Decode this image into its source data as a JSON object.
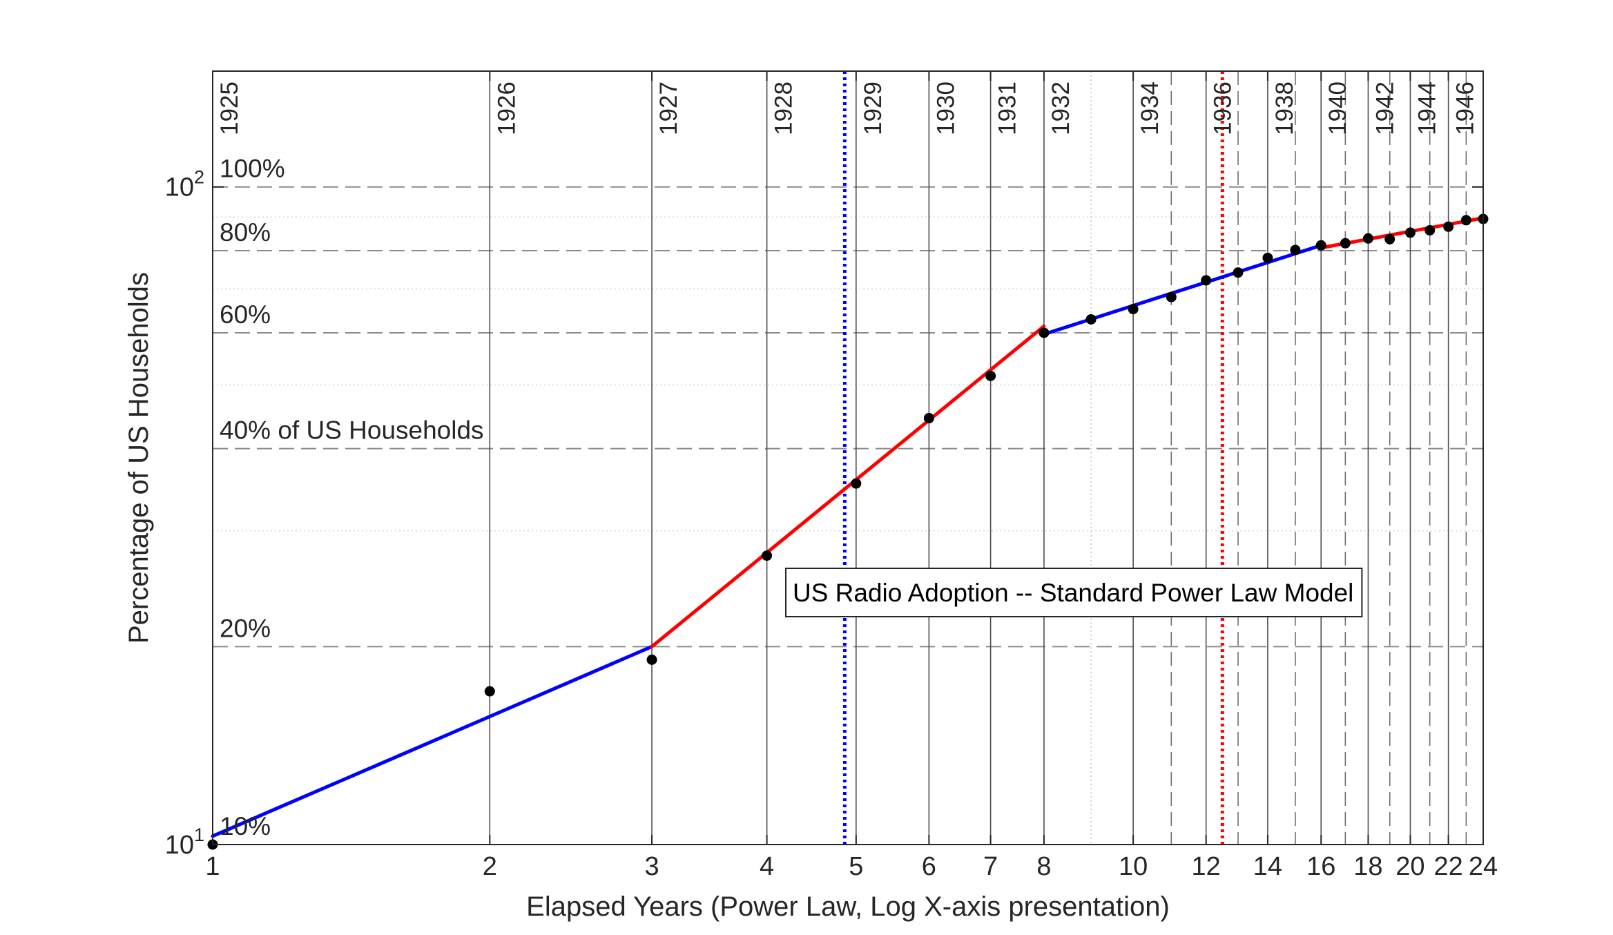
{
  "chart_data": {
    "type": "line",
    "xlabel": "Elapsed Years (Power Law, Log X-axis presentation)",
    "ylabel": "Percentage of US Households",
    "x_scale": "log",
    "y_scale": "log",
    "xlim": [
      1,
      24
    ],
    "ylim": [
      10,
      150
    ],
    "x_ticks": [
      1,
      2,
      3,
      4,
      5,
      6,
      7,
      8,
      10,
      12,
      14,
      16,
      18,
      20,
      22,
      24
    ],
    "y_ticks": [
      {
        "value": 10,
        "base": "10",
        "exp": "1"
      },
      {
        "value": 100,
        "base": "10",
        "exp": "2"
      }
    ],
    "year_lines": [
      {
        "x": 1,
        "label": "1925",
        "style": "solid"
      },
      {
        "x": 2,
        "label": "1926",
        "style": "solid"
      },
      {
        "x": 3,
        "label": "1927",
        "style": "solid"
      },
      {
        "x": 4,
        "label": "1928",
        "style": "solid"
      },
      {
        "x": 5,
        "label": "1929",
        "style": "solid"
      },
      {
        "x": 6,
        "label": "1930",
        "style": "solid"
      },
      {
        "x": 7,
        "label": "1931",
        "style": "solid"
      },
      {
        "x": 8,
        "label": "1932",
        "style": "solid"
      },
      {
        "x": 9,
        "label": "",
        "style": "dotted"
      },
      {
        "x": 10,
        "label": "1934",
        "style": "solid"
      },
      {
        "x": 11,
        "label": "",
        "style": "dashed"
      },
      {
        "x": 12,
        "label": "1936",
        "style": "solid"
      },
      {
        "x": 13,
        "label": "",
        "style": "dashed"
      },
      {
        "x": 14,
        "label": "1938",
        "style": "solid"
      },
      {
        "x": 15,
        "label": "",
        "style": "dashed"
      },
      {
        "x": 16,
        "label": "1940",
        "style": "solid"
      },
      {
        "x": 17,
        "label": "",
        "style": "dashed"
      },
      {
        "x": 18,
        "label": "1942",
        "style": "solid"
      },
      {
        "x": 19,
        "label": "",
        "style": "dashed"
      },
      {
        "x": 20,
        "label": "1944",
        "style": "solid"
      },
      {
        "x": 21,
        "label": "",
        "style": "dashed"
      },
      {
        "x": 22,
        "label": "1946",
        "style": "solid"
      },
      {
        "x": 23,
        "label": "",
        "style": "dashed"
      }
    ],
    "percent_lines": [
      {
        "y": 100,
        "label": "100%"
      },
      {
        "y": 80,
        "label": "80%"
      },
      {
        "y": 60,
        "label": "60%"
      },
      {
        "y": 40,
        "label": "40% of US Households"
      },
      {
        "y": 20,
        "label": "20%"
      },
      {
        "y": 10,
        "label": "10%"
      }
    ],
    "minor_y_gridlines": [
      30,
      50,
      70,
      90
    ],
    "vertical_markers": [
      {
        "x": 4.86,
        "color": "#0000ff"
      },
      {
        "x": 12.5,
        "color": "#ff0000"
      }
    ],
    "annotation": "US Radio Adoption -- Standard Power Law Model",
    "series": [
      {
        "type": "scatter",
        "color": "#000000",
        "x": [
          1,
          2,
          3,
          4,
          5,
          6,
          7,
          8,
          9,
          10,
          11,
          12,
          13,
          14,
          15,
          16,
          17,
          18,
          19,
          20,
          21,
          22,
          23,
          24
        ],
        "y": [
          10,
          17.1,
          19.1,
          27.5,
          35.4,
          44.5,
          51.6,
          60.0,
          62.9,
          65.2,
          68.0,
          72.1,
          74.1,
          78.0,
          80.2,
          81.5,
          82.1,
          83.5,
          83.3,
          85.2,
          85.9,
          87.0,
          89.0,
          89.4
        ]
      },
      {
        "type": "line",
        "color": "#0000ff",
        "x": [
          1,
          3
        ],
        "y": [
          10.3,
          20.0
        ]
      },
      {
        "type": "line",
        "color": "#ff0000",
        "x": [
          3,
          8
        ],
        "y": [
          20.0,
          61.4
        ]
      },
      {
        "type": "line",
        "color": "#0000ff",
        "x": [
          8,
          16
        ],
        "y": [
          59.7,
          81.5
        ]
      },
      {
        "type": "line",
        "color": "#ff0000",
        "x": [
          16,
          24
        ],
        "y": [
          80.8,
          89.7
        ]
      }
    ]
  }
}
